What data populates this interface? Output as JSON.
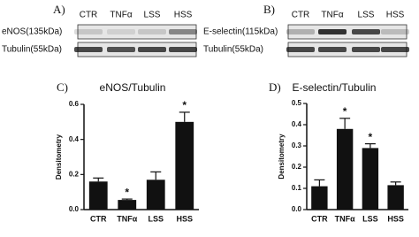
{
  "blots": [
    {
      "label": "A)",
      "lanes": [
        "CTR",
        "TNFα",
        "LSS",
        "HSS"
      ],
      "rows": [
        "eNOS(135kDa)",
        "Tubulin(55kDa)"
      ]
    },
    {
      "label": "B)",
      "lanes": [
        "CTR",
        "TNFα",
        "LSS",
        "HSS"
      ],
      "rows": [
        "E-selectin(115kDa)",
        "Tubulin(55kDa)"
      ]
    }
  ],
  "chart_data": [
    {
      "type": "bar",
      "label": "C)",
      "title": "eNOS/Tubulin",
      "ylabel": "Densitometry",
      "categories": [
        "CTR",
        "TNFα",
        "LSS",
        "HSS"
      ],
      "values": [
        0.16,
        0.055,
        0.17,
        0.5
      ],
      "errors": [
        0.02,
        0.005,
        0.045,
        0.055
      ],
      "stars": [
        null,
        "*",
        null,
        "*"
      ],
      "color": "#111111",
      "ylim": [
        0,
        0.6
      ],
      "yticks": [
        {
          "value": 0,
          "label": "0.0"
        },
        0.2,
        0.4,
        0.6
      ]
    },
    {
      "type": "bar",
      "label": "D)",
      "title": "E-selectin/Tubulin",
      "ylabel": "Densitometry",
      "categories": [
        "CTR",
        "TNFα",
        "LSS",
        "HSS"
      ],
      "values": [
        0.11,
        0.38,
        0.29,
        0.115
      ],
      "errors": [
        0.03,
        0.05,
        0.02,
        0.015
      ],
      "stars": [
        null,
        "*",
        "*",
        null
      ],
      "color": "#111111",
      "ylim": [
        0,
        0.5
      ],
      "yticks": [
        {
          "value": 0,
          "label": "0.0"
        },
        0.1,
        0.2,
        0.3,
        0.4,
        0.5
      ]
    }
  ]
}
